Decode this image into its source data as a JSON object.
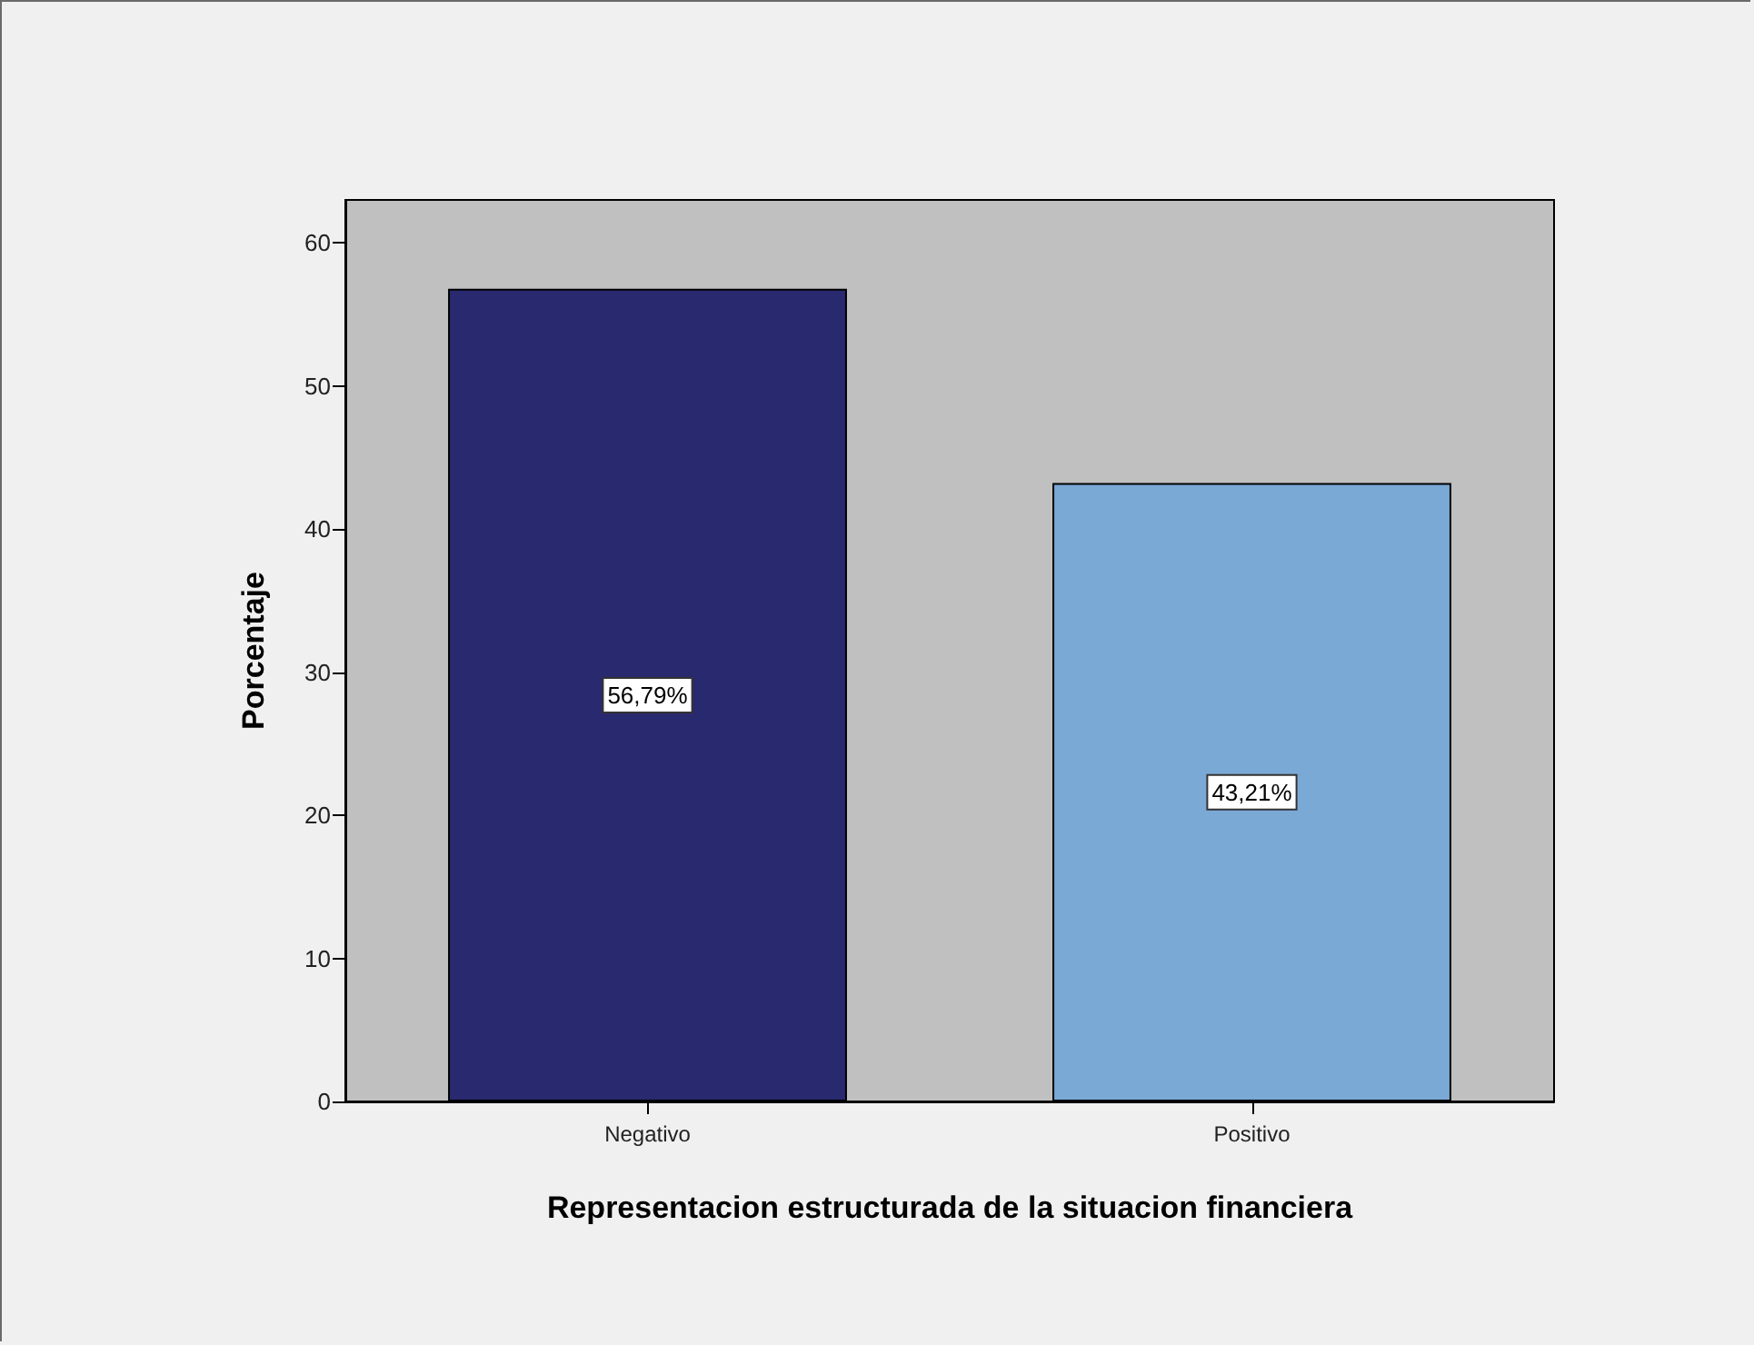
{
  "chart_data": {
    "type": "bar",
    "xlabel": "Representacion estructurada de la situacion financiera",
    "ylabel": "Porcentaje",
    "categories": [
      "Negativo",
      "Positivo"
    ],
    "values": [
      56.79,
      43.21
    ],
    "colors": [
      "#29296f",
      "#7aa9d6"
    ],
    "value_labels": [
      "56,79%",
      "43,21%"
    ],
    "ylim": [
      0,
      63
    ],
    "yticks": [
      0,
      10,
      20,
      30,
      40,
      50,
      60
    ]
  }
}
